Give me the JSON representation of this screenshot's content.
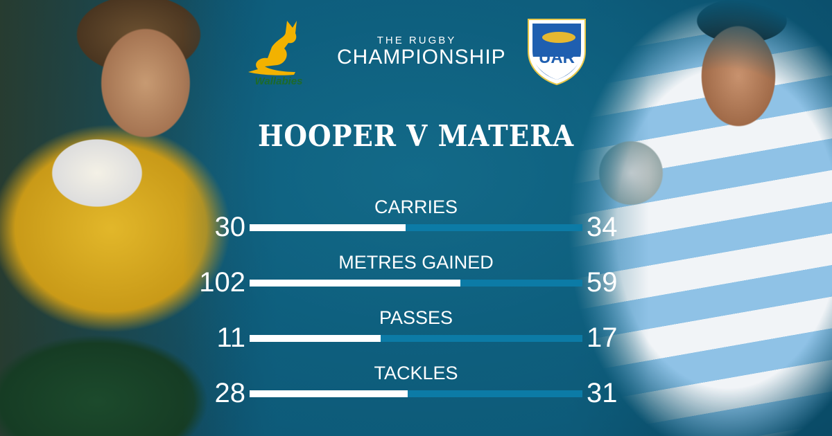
{
  "header": {
    "left_team_logo": "Wallabies",
    "competition_logo": {
      "top": "THE RUGBY",
      "main": "CHAMPIONSHIP"
    },
    "right_team_logo": "UAR",
    "title": "HOOPER V MATERA"
  },
  "colors": {
    "background": "#0e5f7e",
    "left_bar": "#ffffff",
    "right_bar": "#0c7ba6",
    "wallabies_gold": "#f2b200",
    "uar_blue": "#1f5fb0"
  },
  "chart_data": {
    "type": "bar",
    "orientation": "horizontal-comparison",
    "categories": [
      "CARRIES",
      "METRES GAINED",
      "PASSES",
      "TACKLES"
    ],
    "series": [
      {
        "values": [
          30,
          102,
          11,
          28
        ]
      },
      {
        "values": [
          34,
          59,
          17,
          31
        ]
      }
    ],
    "rows": [
      {
        "label": "CARRIES",
        "left": "30",
        "right": "34"
      },
      {
        "label": "METRES GAINED",
        "left": "102",
        "right": "59"
      },
      {
        "label": "PASSES",
        "left": "11",
        "right": "17"
      },
      {
        "label": "TACKLES",
        "left": "28",
        "right": "31"
      }
    ]
  }
}
